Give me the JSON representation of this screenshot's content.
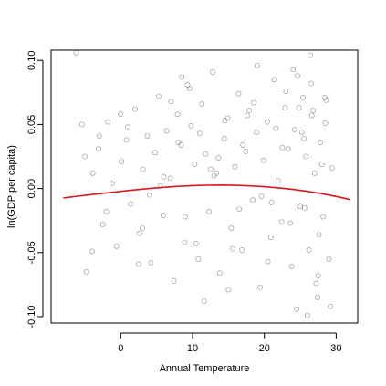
{
  "chart_data": {
    "type": "scatter",
    "title": "",
    "xlabel": "Annual Temperature",
    "ylabel": "ln(GDP per capita)",
    "xlim": [
      -9.7,
      33.0
    ],
    "ylim": [
      -0.105,
      0.108
    ],
    "x_ticks": [
      0,
      10,
      20,
      30
    ],
    "x_tick_labels": [
      "0",
      "10",
      "20",
      "30"
    ],
    "y_ticks": [
      -0.1,
      -0.05,
      0.0,
      0.05,
      0.1
    ],
    "y_tick_labels": [
      "-0.10",
      "-0.05",
      "0.00",
      "0.05",
      "0.10"
    ],
    "grid": false,
    "legend": "none",
    "points_color": "#000000",
    "fit_color": "#d7191c",
    "series": [
      {
        "kind": "points",
        "x": [
          -6.2,
          -5.4,
          -4.8,
          -3.9,
          -3.1,
          -2.5,
          -1.8,
          -1.2,
          -0.6,
          0.1,
          0.8,
          1.4,
          2.0,
          2.6,
          3.1,
          3.7,
          4.2,
          4.8,
          5.3,
          5.9,
          6.4,
          6.9,
          7.4,
          7.9,
          8.4,
          8.9,
          9.3,
          9.8,
          10.3,
          10.8,
          11.3,
          11.8,
          12.3,
          12.8,
          13.3,
          13.8,
          14.4,
          14.9,
          15.4,
          15.9,
          16.4,
          16.9,
          17.4,
          17.9,
          18.4,
          18.9,
          19.4,
          19.9,
          20.4,
          20.9,
          21.4,
          21.9,
          22.4,
          22.9,
          23.3,
          23.8,
          24.2,
          24.6,
          25.0,
          25.4,
          25.8,
          26.2,
          26.6,
          27.0,
          27.4,
          27.8,
          28.2,
          28.6,
          29.0,
          29.4,
          -5.0,
          -2.0,
          1.0,
          4.0,
          7.0,
          9.0,
          11.0,
          13.0,
          15.0,
          17.0,
          19.0,
          21.0,
          23.0,
          24.5,
          25.5,
          26.5,
          27.5,
          28.5,
          -4.0,
          0.0,
          3.0,
          6.0,
          8.5,
          10.5,
          12.5,
          14.5,
          16.5,
          18.5,
          20.5,
          22.5,
          24.0,
          25.2,
          26.0,
          26.8,
          27.6,
          28.4,
          -3.0,
          2.5,
          5.5,
          8.0,
          9.6,
          11.6,
          13.6,
          15.6,
          17.6,
          19.6,
          21.6,
          23.6,
          24.8,
          25.6,
          26.4,
          27.2,
          28.0,
          29.2
        ],
        "y": [
          0.106,
          0.05,
          -0.065,
          0.012,
          0.031,
          -0.028,
          0.052,
          0.004,
          -0.045,
          0.021,
          0.038,
          -0.012,
          0.062,
          -0.035,
          0.015,
          0.041,
          -0.058,
          0.028,
          0.072,
          -0.021,
          0.045,
          0.008,
          -0.072,
          0.058,
          0.034,
          -0.042,
          0.081,
          0.049,
          0.019,
          -0.055,
          0.066,
          0.027,
          -0.018,
          0.091,
          0.012,
          -0.066,
          0.039,
          0.055,
          -0.031,
          0.017,
          0.074,
          -0.048,
          0.029,
          0.061,
          -0.009,
          0.044,
          -0.077,
          0.022,
          0.052,
          -0.038,
          0.085,
          0.006,
          -0.026,
          0.063,
          0.031,
          -0.061,
          0.046,
          0.088,
          -0.014,
          0.071,
          0.025,
          -0.048,
          0.057,
          0.012,
          -0.085,
          0.036,
          -0.022,
          0.069,
          -0.055,
          0.016,
          0.025,
          -0.018,
          0.048,
          -0.005,
          0.068,
          -0.022,
          0.043,
          0.01,
          -0.079,
          0.034,
          0.096,
          -0.011,
          0.076,
          -0.094,
          0.039,
          0.082,
          -0.068,
          0.051,
          -0.049,
          0.058,
          -0.031,
          0.009,
          0.087,
          -0.043,
          0.015,
          0.053,
          -0.016,
          0.067,
          -0.057,
          0.032,
          0.093,
          0.044,
          -0.099,
          0.061,
          -0.036,
          0.071,
          0.041,
          -0.059,
          0.002,
          0.036,
          0.078,
          -0.088,
          0.024,
          -0.047,
          0.057,
          -0.006,
          0.047,
          -0.027,
          0.063,
          -0.015,
          0.104,
          -0.074,
          0.019,
          -0.092
        ]
      },
      {
        "kind": "fit",
        "name": "",
        "x": [
          -8.0,
          -6.0,
          -4.0,
          -2.0,
          0.0,
          2.0,
          4.0,
          6.0,
          8.0,
          10.0,
          12.0,
          14.0,
          16.0,
          18.0,
          20.0,
          22.0,
          24.0,
          26.0,
          28.0,
          30.0,
          32.0
        ],
        "y": [
          -0.0073,
          -0.006,
          -0.0047,
          -0.0034,
          -0.0022,
          -0.0011,
          0.0,
          0.0009,
          0.0017,
          0.0023,
          0.0026,
          0.0027,
          0.0025,
          0.0021,
          0.0014,
          0.0005,
          -0.0007,
          -0.0022,
          -0.004,
          -0.0062,
          -0.0086
        ]
      }
    ]
  }
}
